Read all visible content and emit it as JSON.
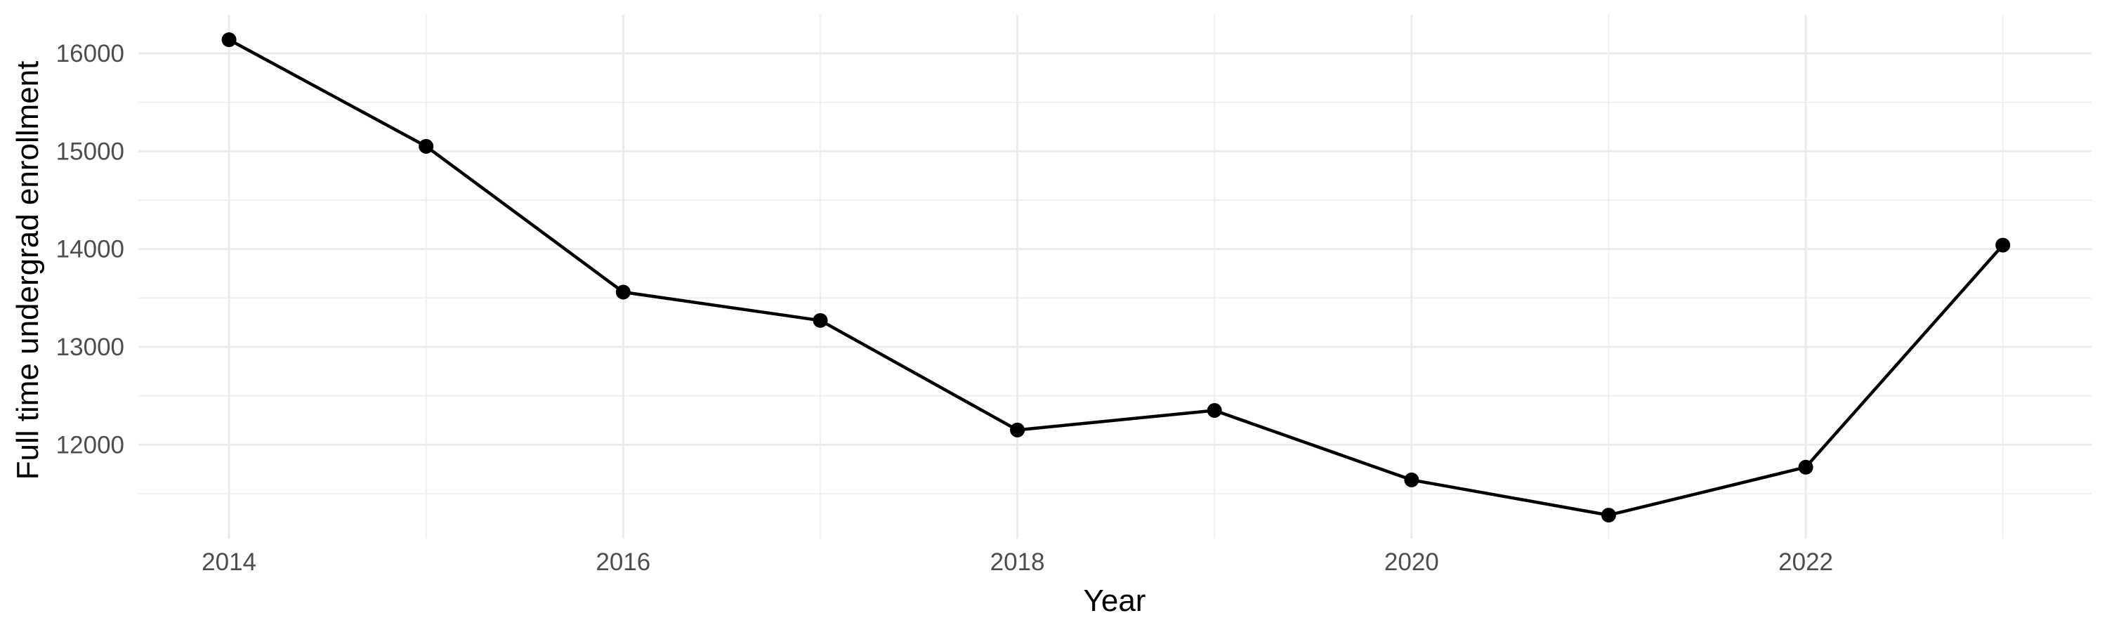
{
  "chart_data": {
    "type": "line",
    "title": "",
    "xlabel": "Year",
    "ylabel": "Full time undergrad enrollment",
    "series": [
      {
        "name": "Full time undergrad enrollment",
        "x": [
          2014,
          2015,
          2016,
          2017,
          2018,
          2019,
          2020,
          2021,
          2022,
          2023
        ],
        "values": [
          16140,
          15050,
          13560,
          13270,
          12150,
          12350,
          11640,
          11280,
          11770,
          14040
        ]
      }
    ],
    "x_ticks": [
      2014,
      2016,
      2018,
      2020,
      2022
    ],
    "x_tick_labels": [
      "2014",
      "2016",
      "2018",
      "2020",
      "2022"
    ],
    "x_minor_ticks": [
      2015,
      2017,
      2019,
      2021,
      2023
    ],
    "y_ticks": [
      12000,
      13000,
      14000,
      15000,
      16000
    ],
    "y_tick_labels": [
      "12000",
      "13000",
      "14000",
      "15000",
      "16000"
    ],
    "y_minor_ticks": [
      11500,
      12500,
      13500,
      14500,
      15500
    ],
    "xlim": [
      2013.54,
      2023.45
    ],
    "ylim": [
      11040,
      16395
    ],
    "grid": "major-and-minor",
    "legend": "none",
    "marker": "filled-circle",
    "colors": {
      "line": "#000000",
      "point": "#000000",
      "grid_major": "#EBEBEB",
      "grid_minor": "#EDEDED",
      "tick_label": "#4D4D4D",
      "axis_title": "#000000",
      "background": "#FFFFFF"
    }
  }
}
